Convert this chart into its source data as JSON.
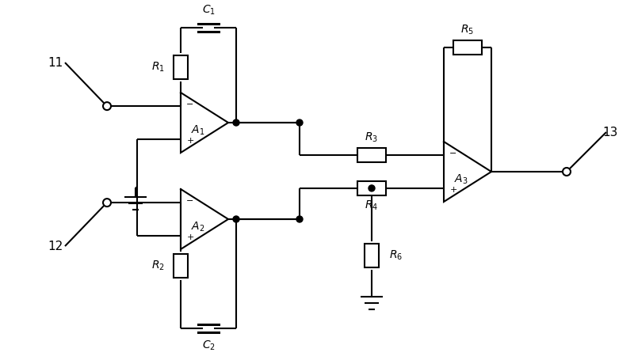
{
  "bg_color": "#ffffff",
  "line_color": "#000000",
  "text_color": "#000000",
  "fig_width": 8.0,
  "fig_height": 4.55,
  "dpi": 100
}
